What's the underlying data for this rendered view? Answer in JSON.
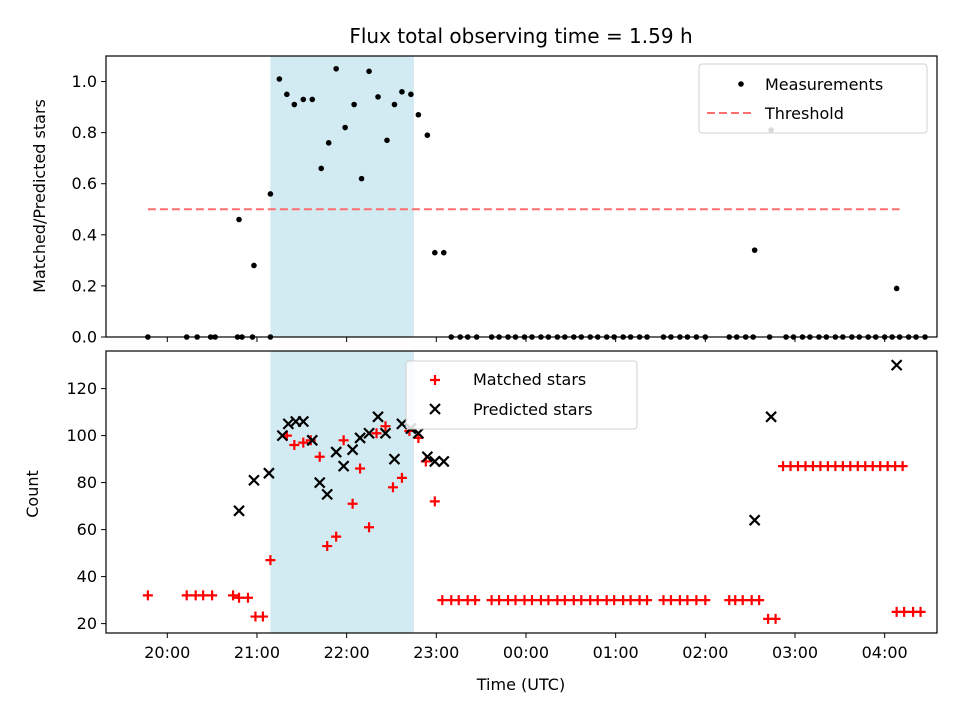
{
  "chart_data": [
    {
      "type": "scatter",
      "title": "Flux total observing time = 1.59 h",
      "ylabel": "Matched/Predicted stars",
      "xlabel": "",
      "xlim": [
        "19:19",
        "04:35"
      ],
      "ylim": [
        0,
        1.1
      ],
      "yticks": [
        "0.0",
        "0.2",
        "0.4",
        "0.6",
        "0.8",
        "1.0"
      ],
      "highlight_span": [
        "21:09",
        "22:45"
      ],
      "highlight_color": "#add8e6",
      "legend": {
        "position": "top-right",
        "entries": [
          "Measurements",
          "Threshold"
        ]
      },
      "threshold": {
        "name": "Threshold",
        "y": 0.5,
        "x": [
          "19:47",
          "04:10"
        ],
        "color": "#ff6f6f",
        "style": "dashed"
      },
      "series": [
        {
          "name": "Measurements",
          "color": "#000000",
          "marker": "dot",
          "points": [
            [
              "19:47",
              0
            ],
            [
              "20:13",
              0
            ],
            [
              "20:20",
              0
            ],
            [
              "20:29",
              0
            ],
            [
              "20:32",
              0
            ],
            [
              "20:47",
              0
            ],
            [
              "20:50",
              0
            ],
            [
              "20:57",
              0
            ],
            [
              "21:09",
              0
            ],
            [
              "20:48",
              0.46
            ],
            [
              "20:58",
              0.28
            ],
            [
              "21:09",
              0.56
            ],
            [
              "21:15",
              1.01
            ],
            [
              "21:20",
              0.95
            ],
            [
              "21:25",
              0.91
            ],
            [
              "21:31",
              0.93
            ],
            [
              "21:37",
              0.93
            ],
            [
              "21:43",
              0.66
            ],
            [
              "21:48",
              0.76
            ],
            [
              "21:53",
              1.05
            ],
            [
              "21:59",
              0.82
            ],
            [
              "22:05",
              0.91
            ],
            [
              "22:10",
              0.62
            ],
            [
              "22:15",
              1.04
            ],
            [
              "22:21",
              0.94
            ],
            [
              "22:27",
              0.77
            ],
            [
              "22:32",
              0.91
            ],
            [
              "22:37",
              0.96
            ],
            [
              "22:43",
              0.95
            ],
            [
              "22:48",
              0.87
            ],
            [
              "22:54",
              0.79
            ],
            [
              "22:59",
              0.33
            ],
            [
              "23:05",
              0.33
            ],
            [
              "23:10",
              0
            ],
            [
              "23:16",
              0
            ],
            [
              "23:21",
              0
            ],
            [
              "23:27",
              0
            ],
            [
              "23:37",
              0
            ],
            [
              "23:42",
              0
            ],
            [
              "23:48",
              0
            ],
            [
              "23:53",
              0
            ],
            [
              "23:59",
              0
            ],
            [
              "00:04",
              0
            ],
            [
              "00:10",
              0
            ],
            [
              "00:15",
              0
            ],
            [
              "00:21",
              0
            ],
            [
              "00:26",
              0
            ],
            [
              "00:32",
              0
            ],
            [
              "00:37",
              0
            ],
            [
              "00:43",
              0
            ],
            [
              "00:48",
              0
            ],
            [
              "00:54",
              0
            ],
            [
              "00:59",
              0
            ],
            [
              "01:05",
              0
            ],
            [
              "01:10",
              0
            ],
            [
              "01:16",
              0
            ],
            [
              "01:21",
              0
            ],
            [
              "01:32",
              0
            ],
            [
              "01:37",
              0
            ],
            [
              "01:43",
              0
            ],
            [
              "01:48",
              0
            ],
            [
              "01:54",
              0
            ],
            [
              "02:00",
              0
            ],
            [
              "02:16",
              0
            ],
            [
              "02:21",
              0
            ],
            [
              "02:27",
              0
            ],
            [
              "02:32",
              0
            ],
            [
              "02:43",
              0
            ],
            [
              "02:33",
              0.34
            ],
            [
              "02:44",
              0.81
            ],
            [
              "02:54",
              0
            ],
            [
              "02:59",
              0
            ],
            [
              "03:05",
              0
            ],
            [
              "03:10",
              0
            ],
            [
              "03:16",
              0
            ],
            [
              "03:21",
              0
            ],
            [
              "03:27",
              0
            ],
            [
              "03:32",
              0
            ],
            [
              "03:38",
              0
            ],
            [
              "03:43",
              0
            ],
            [
              "03:49",
              0
            ],
            [
              "03:54",
              0
            ],
            [
              "04:00",
              0
            ],
            [
              "04:05",
              0
            ],
            [
              "04:10",
              0
            ],
            [
              "04:16",
              0
            ],
            [
              "04:21",
              0
            ],
            [
              "04:27",
              0
            ],
            [
              "04:08",
              0.19
            ]
          ]
        }
      ]
    },
    {
      "type": "scatter",
      "title": "",
      "xlabel": "Time (UTC)",
      "ylabel": "Count",
      "xlim": [
        "19:19",
        "04:35"
      ],
      "ylim": [
        16,
        136
      ],
      "yticks": [
        "20",
        "40",
        "60",
        "80",
        "100",
        "120"
      ],
      "xticks": [
        "20:00",
        "21:00",
        "22:00",
        "23:00",
        "00:00",
        "01:00",
        "02:00",
        "03:00",
        "04:00"
      ],
      "highlight_span": [
        "21:09",
        "22:45"
      ],
      "highlight_color": "#add8e6",
      "legend": {
        "position": "top-center",
        "entries": [
          "Matched stars",
          "Predicted stars"
        ]
      },
      "series": [
        {
          "name": "Matched stars",
          "color": "#ff0000",
          "marker": "plus",
          "points": [
            [
              "19:47",
              32
            ],
            [
              "20:13",
              32
            ],
            [
              "20:19",
              32
            ],
            [
              "20:24",
              32
            ],
            [
              "20:30",
              32
            ],
            [
              "20:44",
              32
            ],
            [
              "20:48",
              31
            ],
            [
              "20:54",
              31
            ],
            [
              "20:59",
              23
            ],
            [
              "21:04",
              23
            ],
            [
              "21:09",
              47
            ],
            [
              "21:20",
              100
            ],
            [
              "21:25",
              96
            ],
            [
              "21:31",
              97
            ],
            [
              "21:36",
              98
            ],
            [
              "21:42",
              91
            ],
            [
              "21:47",
              53
            ],
            [
              "21:53",
              57
            ],
            [
              "21:58",
              98
            ],
            [
              "22:04",
              71
            ],
            [
              "22:09",
              86
            ],
            [
              "22:15",
              61
            ],
            [
              "22:20",
              101
            ],
            [
              "22:26",
              104
            ],
            [
              "22:31",
              78
            ],
            [
              "22:37",
              82
            ],
            [
              "22:42",
              102
            ],
            [
              "22:48",
              99
            ],
            [
              "22:53",
              89
            ],
            [
              "22:59",
              72
            ],
            [
              "23:04",
              30
            ],
            [
              "23:10",
              30
            ],
            [
              "23:15",
              30
            ],
            [
              "23:21",
              30
            ],
            [
              "23:26",
              30
            ],
            [
              "23:37",
              30
            ],
            [
              "23:42",
              30
            ],
            [
              "23:48",
              30
            ],
            [
              "23:53",
              30
            ],
            [
              "23:59",
              30
            ],
            [
              "00:04",
              30
            ],
            [
              "00:10",
              30
            ],
            [
              "00:15",
              30
            ],
            [
              "00:21",
              30
            ],
            [
              "00:26",
              30
            ],
            [
              "00:32",
              30
            ],
            [
              "00:37",
              30
            ],
            [
              "00:43",
              30
            ],
            [
              "00:48",
              30
            ],
            [
              "00:54",
              30
            ],
            [
              "00:59",
              30
            ],
            [
              "01:05",
              30
            ],
            [
              "01:10",
              30
            ],
            [
              "01:16",
              30
            ],
            [
              "01:21",
              30
            ],
            [
              "01:32",
              30
            ],
            [
              "01:37",
              30
            ],
            [
              "01:43",
              30
            ],
            [
              "01:48",
              30
            ],
            [
              "01:54",
              30
            ],
            [
              "02:00",
              30
            ],
            [
              "02:16",
              30
            ],
            [
              "02:20",
              30
            ],
            [
              "02:25",
              30
            ],
            [
              "02:31",
              30
            ],
            [
              "02:36",
              30
            ],
            [
              "02:42",
              22
            ],
            [
              "02:47",
              22
            ],
            [
              "02:52",
              87
            ],
            [
              "02:57",
              87
            ],
            [
              "03:02",
              87
            ],
            [
              "03:07",
              87
            ],
            [
              "03:12",
              87
            ],
            [
              "03:17",
              87
            ],
            [
              "03:22",
              87
            ],
            [
              "03:27",
              87
            ],
            [
              "03:32",
              87
            ],
            [
              "03:37",
              87
            ],
            [
              "03:42",
              87
            ],
            [
              "03:47",
              87
            ],
            [
              "03:52",
              87
            ],
            [
              "03:57",
              87
            ],
            [
              "04:02",
              87
            ],
            [
              "04:07",
              87
            ],
            [
              "04:12",
              87
            ],
            [
              "04:08",
              25
            ],
            [
              "04:13",
              25
            ],
            [
              "04:19",
              25
            ],
            [
              "04:24",
              25
            ]
          ]
        },
        {
          "name": "Predicted stars",
          "color": "#000000",
          "marker": "x",
          "points": [
            [
              "20:48",
              68
            ],
            [
              "20:58",
              81
            ],
            [
              "21:08",
              84
            ],
            [
              "21:17",
              100
            ],
            [
              "21:21",
              105
            ],
            [
              "21:26",
              106
            ],
            [
              "21:31",
              106
            ],
            [
              "21:37",
              98
            ],
            [
              "21:42",
              80
            ],
            [
              "21:47",
              75
            ],
            [
              "21:53",
              93
            ],
            [
              "21:58",
              87
            ],
            [
              "22:04",
              94
            ],
            [
              "22:09",
              99
            ],
            [
              "22:15",
              101
            ],
            [
              "22:21",
              108
            ],
            [
              "22:26",
              101
            ],
            [
              "22:32",
              90
            ],
            [
              "22:37",
              105
            ],
            [
              "22:43",
              103
            ],
            [
              "22:48",
              101
            ],
            [
              "22:54",
              91
            ],
            [
              "22:59",
              89
            ],
            [
              "23:05",
              89
            ],
            [
              "02:33",
              64
            ],
            [
              "02:44",
              108
            ],
            [
              "04:08",
              130
            ]
          ]
        }
      ]
    }
  ]
}
